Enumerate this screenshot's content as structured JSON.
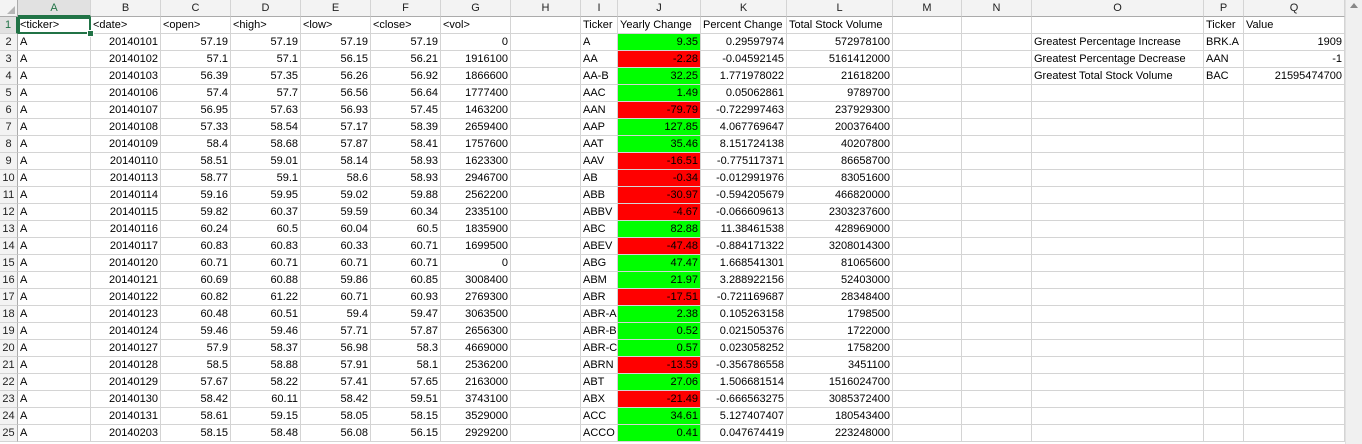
{
  "columns": [
    "A",
    "B",
    "C",
    "D",
    "E",
    "F",
    "G",
    "H",
    "I",
    "J",
    "K",
    "L",
    "M",
    "N",
    "O",
    "P",
    "Q"
  ],
  "row_numbers": [
    1,
    2,
    3,
    4,
    5,
    6,
    7,
    8,
    9,
    10,
    11,
    12,
    13,
    14,
    15,
    16,
    17,
    18,
    19,
    20,
    21,
    22,
    23,
    24,
    25
  ],
  "raw_headers": [
    "<ticker>",
    "<date>",
    "<open>",
    "<high>",
    "<low>",
    "<close>",
    "<vol>"
  ],
  "raw_rows": [
    [
      "A",
      "20140101",
      "57.19",
      "57.19",
      "57.19",
      "57.19",
      "0"
    ],
    [
      "A",
      "20140102",
      "57.1",
      "57.1",
      "56.15",
      "56.21",
      "1916100"
    ],
    [
      "A",
      "20140103",
      "56.39",
      "57.35",
      "56.26",
      "56.92",
      "1866600"
    ],
    [
      "A",
      "20140106",
      "57.4",
      "57.7",
      "56.56",
      "56.64",
      "1777400"
    ],
    [
      "A",
      "20140107",
      "56.95",
      "57.63",
      "56.93",
      "57.45",
      "1463200"
    ],
    [
      "A",
      "20140108",
      "57.33",
      "58.54",
      "57.17",
      "58.39",
      "2659400"
    ],
    [
      "A",
      "20140109",
      "58.4",
      "58.68",
      "57.87",
      "58.41",
      "1757600"
    ],
    [
      "A",
      "20140110",
      "58.51",
      "59.01",
      "58.14",
      "58.93",
      "1623300"
    ],
    [
      "A",
      "20140113",
      "58.77",
      "59.1",
      "58.6",
      "58.93",
      "2946700"
    ],
    [
      "A",
      "20140114",
      "59.16",
      "59.95",
      "59.02",
      "59.88",
      "2562200"
    ],
    [
      "A",
      "20140115",
      "59.82",
      "60.37",
      "59.59",
      "60.34",
      "2335100"
    ],
    [
      "A",
      "20140116",
      "60.24",
      "60.5",
      "60.04",
      "60.5",
      "1835900"
    ],
    [
      "A",
      "20140117",
      "60.83",
      "60.83",
      "60.33",
      "60.71",
      "1699500"
    ],
    [
      "A",
      "20140120",
      "60.71",
      "60.71",
      "60.71",
      "60.71",
      "0"
    ],
    [
      "A",
      "20140121",
      "60.69",
      "60.88",
      "59.86",
      "60.85",
      "3008400"
    ],
    [
      "A",
      "20140122",
      "60.82",
      "61.22",
      "60.71",
      "60.93",
      "2769300"
    ],
    [
      "A",
      "20140123",
      "60.48",
      "60.51",
      "59.4",
      "59.47",
      "3063500"
    ],
    [
      "A",
      "20140124",
      "59.46",
      "59.46",
      "57.71",
      "57.87",
      "2656300"
    ],
    [
      "A",
      "20140127",
      "57.9",
      "58.37",
      "56.98",
      "58.3",
      "4669000"
    ],
    [
      "A",
      "20140128",
      "58.5",
      "58.88",
      "57.91",
      "58.1",
      "2536200"
    ],
    [
      "A",
      "20140129",
      "57.67",
      "58.22",
      "57.41",
      "57.65",
      "2163000"
    ],
    [
      "A",
      "20140130",
      "58.42",
      "60.11",
      "58.42",
      "59.51",
      "3743100"
    ],
    [
      "A",
      "20140131",
      "58.61",
      "59.15",
      "58.05",
      "58.15",
      "3529000"
    ],
    [
      "A",
      "20140203",
      "58.15",
      "58.48",
      "56.08",
      "56.15",
      "2929200"
    ]
  ],
  "summary_headers": [
    "Ticker",
    "Yearly Change",
    "Percent Change",
    "Total Stock Volume"
  ],
  "summary_rows": [
    {
      "ticker": "A",
      "change": "9.35",
      "pct": "0.29597974",
      "volume": "572978100",
      "color": "green"
    },
    {
      "ticker": "AA",
      "change": "-2.28",
      "pct": "-0.04592145",
      "volume": "5161412000",
      "color": "red"
    },
    {
      "ticker": "AA-B",
      "change": "32.25",
      "pct": "1.771978022",
      "volume": "21618200",
      "color": "green"
    },
    {
      "ticker": "AAC",
      "change": "1.49",
      "pct": "0.05062861",
      "volume": "9789700",
      "color": "green"
    },
    {
      "ticker": "AAN",
      "change": "-79.79",
      "pct": "-0.722997463",
      "volume": "237929300",
      "color": "red"
    },
    {
      "ticker": "AAP",
      "change": "127.85",
      "pct": "4.067769647",
      "volume": "200376400",
      "color": "green"
    },
    {
      "ticker": "AAT",
      "change": "35.46",
      "pct": "8.151724138",
      "volume": "40207800",
      "color": "green"
    },
    {
      "ticker": "AAV",
      "change": "-16.51",
      "pct": "-0.775117371",
      "volume": "86658700",
      "color": "red"
    },
    {
      "ticker": "AB",
      "change": "-0.34",
      "pct": "-0.012991976",
      "volume": "83051600",
      "color": "red"
    },
    {
      "ticker": "ABB",
      "change": "-30.97",
      "pct": "-0.594205679",
      "volume": "466820000",
      "color": "red"
    },
    {
      "ticker": "ABBV",
      "change": "-4.67",
      "pct": "-0.066609613",
      "volume": "2303237600",
      "color": "red"
    },
    {
      "ticker": "ABC",
      "change": "82.88",
      "pct": "11.38461538",
      "volume": "428969000",
      "color": "green"
    },
    {
      "ticker": "ABEV",
      "change": "-47.48",
      "pct": "-0.884171322",
      "volume": "3208014300",
      "color": "red"
    },
    {
      "ticker": "ABG",
      "change": "47.47",
      "pct": "1.668541301",
      "volume": "81065600",
      "color": "green"
    },
    {
      "ticker": "ABM",
      "change": "21.97",
      "pct": "3.288922156",
      "volume": "52403000",
      "color": "green"
    },
    {
      "ticker": "ABR",
      "change": "-17.51",
      "pct": "-0.721169687",
      "volume": "28348400",
      "color": "red"
    },
    {
      "ticker": "ABR-A",
      "change": "2.38",
      "pct": "0.105263158",
      "volume": "1798500",
      "color": "green"
    },
    {
      "ticker": "ABR-B",
      "change": "0.52",
      "pct": "0.021505376",
      "volume": "1722000",
      "color": "green"
    },
    {
      "ticker": "ABR-C",
      "change": "0.57",
      "pct": "0.023058252",
      "volume": "1758200",
      "color": "green"
    },
    {
      "ticker": "ABRN",
      "change": "-13.59",
      "pct": "-0.356786558",
      "volume": "3451100",
      "color": "red"
    },
    {
      "ticker": "ABT",
      "change": "27.06",
      "pct": "1.506681514",
      "volume": "1516024700",
      "color": "green"
    },
    {
      "ticker": "ABX",
      "change": "-21.49",
      "pct": "-0.666563275",
      "volume": "3085372400",
      "color": "red"
    },
    {
      "ticker": "ACC",
      "change": "34.61",
      "pct": "5.127407407",
      "volume": "180543400",
      "color": "green"
    },
    {
      "ticker": "ACCO",
      "change": "0.41",
      "pct": "0.047674419",
      "volume": "223248000",
      "color": "green"
    }
  ],
  "greatest_headers": [
    "Ticker",
    "Value"
  ],
  "greatest_rows": [
    {
      "label": "Greatest Percentage Increase",
      "ticker": "BRK.A",
      "value": "1909"
    },
    {
      "label": "Greatest Percentage Decrease",
      "ticker": "AAN",
      "value": "-1"
    },
    {
      "label": "Greatest Total Stock Volume",
      "ticker": "BAC",
      "value": "21595474700"
    }
  ],
  "colors": {
    "positive": "#00ff00",
    "negative": "#ff0000",
    "selection": "#217346"
  }
}
